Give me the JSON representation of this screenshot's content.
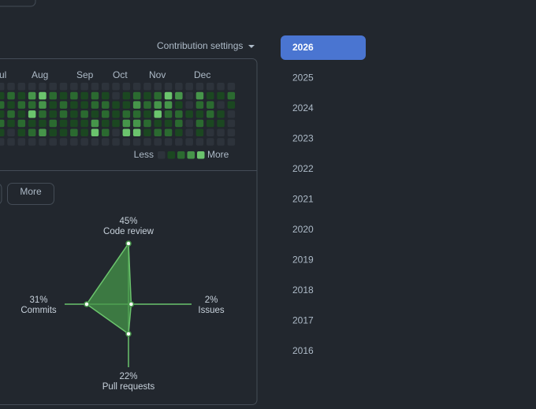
{
  "header": {
    "settings": "Contribution settings"
  },
  "calendar": {
    "months": [
      "Jul",
      "Aug",
      "Sep",
      "Oct",
      "Nov",
      "Dec"
    ],
    "weeks": [
      [
        0,
        1,
        2,
        1,
        2,
        1,
        0
      ],
      [
        0,
        2,
        1,
        2,
        1,
        0,
        0
      ],
      [
        0,
        1,
        2,
        1,
        2,
        1,
        0
      ],
      [
        0,
        3,
        2,
        4,
        1,
        2,
        0
      ],
      [
        0,
        4,
        3,
        2,
        1,
        3,
        0
      ],
      [
        0,
        2,
        1,
        1,
        2,
        1,
        0
      ],
      [
        0,
        1,
        2,
        2,
        1,
        1,
        0
      ],
      [
        0,
        2,
        1,
        1,
        1,
        2,
        0
      ],
      [
        0,
        1,
        1,
        2,
        1,
        1,
        0
      ],
      [
        0,
        2,
        2,
        1,
        3,
        4,
        0
      ],
      [
        0,
        1,
        2,
        2,
        1,
        2,
        0
      ],
      [
        0,
        0,
        1,
        1,
        1,
        0,
        0
      ],
      [
        0,
        1,
        1,
        2,
        3,
        4,
        0
      ],
      [
        0,
        2,
        3,
        2,
        3,
        4,
        0
      ],
      [
        0,
        1,
        2,
        1,
        2,
        1,
        0
      ],
      [
        0,
        2,
        3,
        4,
        1,
        2,
        0
      ],
      [
        0,
        4,
        3,
        2,
        1,
        2,
        0
      ],
      [
        0,
        3,
        1,
        2,
        2,
        1,
        0
      ],
      [
        0,
        0,
        0,
        1,
        0,
        0,
        0
      ],
      [
        0,
        3,
        2,
        1,
        2,
        1,
        0
      ],
      [
        0,
        1,
        2,
        2,
        1,
        0,
        0
      ],
      [
        0,
        1,
        0,
        1,
        1,
        0,
        0
      ],
      [
        0,
        2,
        1,
        0,
        0,
        0,
        0
      ]
    ],
    "legend": {
      "less": "Less",
      "more": "More"
    }
  },
  "filters": {
    "more": "More"
  },
  "activity": {
    "axes": [
      {
        "label": "Code review",
        "value": 45,
        "value_label": "45%"
      },
      {
        "label": "Issues",
        "value": 2,
        "value_label": "2%"
      },
      {
        "label": "Pull requests",
        "value": 22,
        "value_label": "22%"
      },
      {
        "label": "Commits",
        "value": 31,
        "value_label": "31%"
      }
    ]
  },
  "years": [
    "2026",
    "2025",
    "2024",
    "2023",
    "2022",
    "2021",
    "2020",
    "2019",
    "2018",
    "2017",
    "2016"
  ]
}
